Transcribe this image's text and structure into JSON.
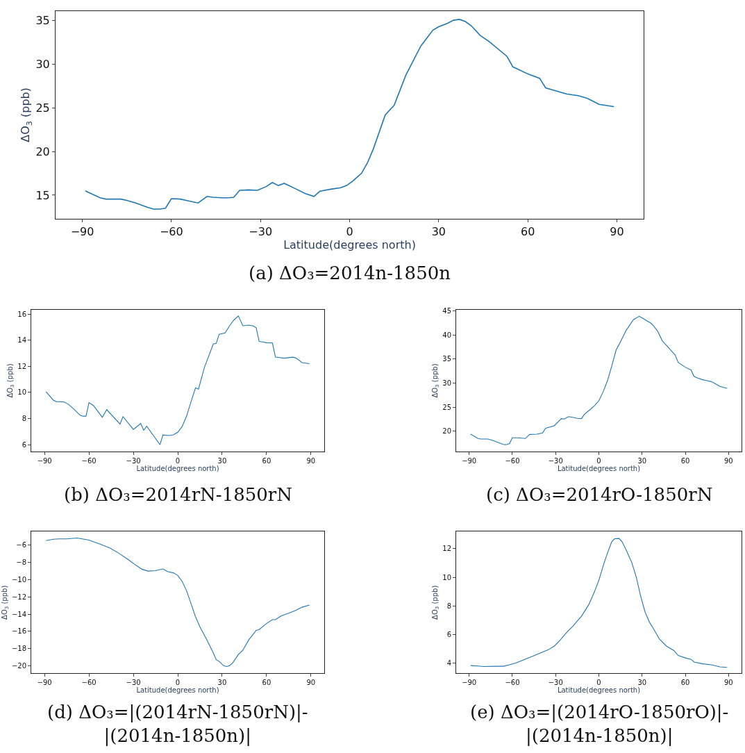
{
  "chart_data": [
    {
      "type": "line",
      "title": "(a) ΔO₃=2014n-1850n",
      "xlabel": "Latitude(degrees north)",
      "ylabel": "ΔO$_{3}$ (ppb)",
      "color": "#1f77b4",
      "xlim": [
        -99,
        99
      ],
      "xticks": [
        -90,
        -60,
        -30,
        0,
        30,
        60,
        90
      ],
      "ylim": [
        12.3,
        36.1
      ],
      "yticks": [
        15,
        20,
        25,
        30,
        35
      ],
      "x": [
        -89,
        -84,
        -82,
        -77,
        -75,
        -72,
        -68,
        -66,
        -64,
        -62,
        -60,
        -57,
        -55,
        -51,
        -48,
        -46,
        -43,
        -41,
        -39,
        -37,
        -34,
        -31,
        -28,
        -26,
        -24,
        -22,
        -18,
        -15,
        -12,
        -10,
        -6,
        -3,
        -1,
        1,
        4,
        6,
        8,
        12,
        15,
        19,
        24,
        28,
        30,
        33,
        35,
        37,
        39,
        41,
        44,
        47,
        53,
        55,
        60,
        64,
        66,
        68,
        73,
        77,
        80,
        84,
        89
      ],
      "values": [
        15.5,
        14.7,
        14.55,
        14.55,
        14.4,
        14.1,
        13.6,
        13.4,
        13.4,
        13.5,
        14.6,
        14.55,
        14.4,
        14.1,
        14.85,
        14.75,
        14.7,
        14.7,
        14.75,
        15.55,
        15.6,
        15.55,
        16.0,
        16.45,
        16.1,
        16.35,
        15.7,
        15.2,
        14.85,
        15.45,
        15.7,
        15.85,
        16.1,
        16.6,
        17.5,
        18.7,
        20.3,
        24.2,
        25.3,
        28.8,
        32.1,
        33.9,
        34.3,
        34.7,
        35.05,
        35.15,
        34.9,
        34.4,
        33.3,
        32.6,
        30.9,
        29.7,
        28.9,
        28.4,
        27.3,
        27.1,
        26.6,
        26.4,
        26.1,
        25.4,
        25.15
      ]
    },
    {
      "type": "line",
      "title": "(b) ΔO₃=2014rN-1850rN",
      "xlabel": "Latitude(degrees north)",
      "ylabel": "ΔO$_{3}$ (ppb)",
      "color": "#1f77b4",
      "xlim": [
        -99,
        99
      ],
      "xticks": [
        -90,
        -60,
        -30,
        0,
        30,
        60,
        90
      ],
      "ylim": [
        5.5,
        16.3
      ],
      "yticks": [
        6,
        8,
        10,
        12,
        14,
        16
      ],
      "x": [
        -89,
        -84,
        -82,
        -77,
        -74,
        -70,
        -66,
        -64,
        -62,
        -60,
        -57,
        -51,
        -48,
        -39,
        -37,
        -30,
        -25,
        -23,
        -21,
        -12,
        -10,
        -6,
        -3,
        0,
        3,
        6,
        9,
        12,
        14,
        18,
        24,
        26,
        28,
        32,
        35,
        38,
        41,
        44,
        48,
        51,
        53,
        55,
        58,
        60,
        64,
        66,
        68,
        72,
        78,
        80,
        84,
        89
      ],
      "values": [
        10.05,
        9.4,
        9.3,
        9.28,
        9.1,
        8.7,
        8.25,
        8.18,
        8.18,
        9.22,
        9.0,
        8.1,
        8.68,
        7.58,
        8.15,
        7.17,
        7.62,
        7.1,
        7.42,
        6.0,
        6.75,
        6.7,
        6.75,
        6.95,
        7.4,
        8.2,
        9.3,
        10.35,
        10.25,
        11.9,
        13.7,
        13.75,
        14.45,
        14.55,
        15.1,
        15.55,
        15.85,
        15.1,
        15.15,
        15.08,
        14.95,
        13.9,
        13.85,
        13.8,
        13.78,
        12.7,
        12.68,
        12.62,
        12.7,
        12.62,
        12.28,
        12.2
      ]
    },
    {
      "type": "line",
      "title": "(c) ΔO₃=2014rO-1850rN",
      "xlabel": "Latitude(degrees north)",
      "ylabel": "ΔO$_{3}$ (ppb)",
      "color": "#1f77b4",
      "xlim": [
        -99,
        99
      ],
      "xticks": [
        -90,
        -60,
        -30,
        0,
        30,
        60,
        90
      ],
      "ylim": [
        15.8,
        45.2
      ],
      "yticks": [
        20,
        25,
        30,
        35,
        40,
        45
      ],
      "x": [
        -89,
        -84,
        -82,
        -77,
        -73,
        -68,
        -66,
        -64,
        -62,
        -60,
        -56,
        -51,
        -48,
        -43,
        -39,
        -37,
        -31,
        -26,
        -24,
        -21,
        -17,
        -15,
        -12,
        -10,
        -6,
        -3,
        0,
        3,
        6,
        9,
        12,
        14,
        19,
        24,
        28,
        31,
        33,
        36,
        38,
        41,
        44,
        48,
        53,
        55,
        60,
        64,
        66,
        68,
        72,
        78,
        80,
        84,
        89
      ],
      "values": [
        19.35,
        18.5,
        18.35,
        18.35,
        18.0,
        17.4,
        17.2,
        17.2,
        17.4,
        18.6,
        18.6,
        18.45,
        19.3,
        19.35,
        19.6,
        20.6,
        21.1,
        22.6,
        22.5,
        23.0,
        22.8,
        22.65,
        22.6,
        23.5,
        24.5,
        25.3,
        26.3,
        28.2,
        30.5,
        33.6,
        36.9,
        38.0,
        41.0,
        43.2,
        43.9,
        43.4,
        43.0,
        42.5,
        41.9,
        40.7,
        38.8,
        37.5,
        35.8,
        34.3,
        33.3,
        32.7,
        31.4,
        31.1,
        30.7,
        30.3,
        30.0,
        29.3,
        28.9
      ]
    },
    {
      "type": "line",
      "title": "(d) ΔO₃=|(2014rN-1850rN)|-|(2014n-1850n)|",
      "xlabel": "Latitude(degrees north)",
      "ylabel": "ΔO$_{3}$ (ppb)",
      "color": "#1f77b4",
      "xlim": [
        -99,
        99
      ],
      "xticks": [
        -90,
        -60,
        -30,
        0,
        30,
        60,
        90
      ],
      "ylim": [
        -20.9,
        -4.4
      ],
      "yticks": [
        -20,
        -18,
        -16,
        -14,
        -12,
        -10,
        -8,
        -6
      ],
      "x": [
        -89,
        -84,
        -80,
        -75,
        -68,
        -60,
        -52,
        -46,
        -40,
        -34,
        -28,
        -24,
        -20,
        -15,
        -10,
        -7,
        -3,
        0,
        3,
        6,
        9,
        12,
        15,
        20,
        24,
        26,
        28,
        31,
        33,
        35,
        37,
        41,
        44,
        48,
        53,
        55,
        60,
        64,
        66,
        70,
        75,
        80,
        84,
        89
      ],
      "values": [
        -5.45,
        -5.3,
        -5.25,
        -5.25,
        -5.15,
        -5.4,
        -5.9,
        -6.3,
        -6.9,
        -7.6,
        -8.35,
        -8.8,
        -9.0,
        -8.95,
        -8.75,
        -9.05,
        -9.2,
        -9.5,
        -10.2,
        -11.3,
        -12.8,
        -14.3,
        -15.5,
        -17.1,
        -18.5,
        -19.3,
        -19.5,
        -20.0,
        -20.1,
        -20.0,
        -19.7,
        -18.7,
        -18.2,
        -17.0,
        -15.9,
        -15.8,
        -15.1,
        -14.65,
        -14.65,
        -14.2,
        -13.9,
        -13.55,
        -13.2,
        -12.95
      ]
    },
    {
      "type": "line",
      "title": "(e) ΔO₃=|(2014rO-1850rO)|-|(2014n-1850n)|",
      "xlabel": "Latitude(degrees north)",
      "ylabel": "ΔO$_{3}$ (ppb)",
      "color": "#1f77b4",
      "xlim": [
        -99,
        99
      ],
      "xticks": [
        -90,
        -60,
        -30,
        0,
        30,
        60,
        90
      ],
      "ylim": [
        3.3,
        13.2
      ],
      "yticks": [
        4,
        6,
        8,
        10,
        12
      ],
      "x": [
        -89,
        -84,
        -80,
        -70,
        -66,
        -62,
        -57,
        -52,
        -46,
        -40,
        -35,
        -31,
        -27,
        -22,
        -18,
        -12,
        -7,
        -3,
        0,
        3,
        6,
        9,
        11,
        14,
        16,
        19,
        23,
        26,
        29,
        32,
        35,
        38,
        42,
        47,
        52,
        55,
        60,
        64,
        66,
        72,
        78,
        84,
        89
      ],
      "values": [
        3.85,
        3.82,
        3.78,
        3.8,
        3.8,
        3.9,
        4.05,
        4.25,
        4.5,
        4.75,
        4.95,
        5.2,
        5.6,
        6.2,
        6.6,
        7.3,
        8.1,
        9.0,
        9.8,
        10.8,
        11.7,
        12.5,
        12.7,
        12.72,
        12.5,
        11.9,
        11.0,
        10.0,
        8.7,
        7.6,
        6.9,
        6.4,
        5.7,
        5.2,
        4.9,
        4.55,
        4.38,
        4.28,
        4.1,
        3.97,
        3.9,
        3.76,
        3.72
      ]
    }
  ]
}
